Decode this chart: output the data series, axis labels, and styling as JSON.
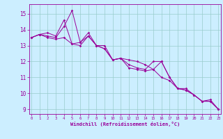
{
  "xlabel": "Windchill (Refroidissement éolien,°C)",
  "bg_color": "#cceeff",
  "line_color": "#990099",
  "grid_color": "#99cccc",
  "x_ticks": [
    0,
    1,
    2,
    3,
    4,
    5,
    6,
    7,
    8,
    9,
    10,
    11,
    12,
    13,
    14,
    15,
    16,
    17,
    18,
    19,
    20,
    21,
    22,
    23
  ],
  "y_ticks": [
    9,
    10,
    11,
    12,
    13,
    14,
    15
  ],
  "ylim": [
    8.7,
    15.6
  ],
  "xlim": [
    -0.3,
    23.3
  ],
  "line1_x": [
    0,
    1,
    2,
    3,
    4,
    5,
    6,
    7,
    8,
    9,
    10,
    11,
    12,
    13,
    14,
    15,
    16,
    17,
    18,
    19,
    20,
    21,
    22,
    23
  ],
  "line1_y": [
    13.5,
    13.7,
    13.6,
    13.5,
    14.2,
    15.2,
    13.2,
    13.8,
    13.0,
    12.8,
    12.1,
    12.2,
    11.8,
    11.6,
    11.5,
    12.0,
    12.0,
    11.0,
    10.3,
    10.3,
    9.9,
    9.5,
    9.5,
    9.0
  ],
  "line2_x": [
    0,
    1,
    2,
    3,
    4,
    5,
    6,
    7,
    8,
    9,
    10,
    11,
    12,
    13,
    14,
    15,
    16,
    17,
    18,
    19,
    20,
    21,
    22,
    23
  ],
  "line2_y": [
    13.5,
    13.7,
    13.8,
    13.6,
    14.6,
    13.1,
    13.2,
    13.6,
    13.0,
    13.0,
    12.1,
    12.2,
    12.1,
    12.0,
    11.8,
    11.5,
    12.0,
    11.0,
    10.3,
    10.2,
    9.9,
    9.5,
    9.6,
    9.0
  ],
  "line3_x": [
    0,
    1,
    2,
    3,
    4,
    5,
    6,
    7,
    8,
    9,
    10,
    11,
    12,
    13,
    14,
    15,
    16,
    17,
    18,
    19,
    20,
    21,
    22,
    23
  ],
  "line3_y": [
    13.5,
    13.7,
    13.5,
    13.4,
    13.5,
    13.1,
    13.0,
    13.6,
    13.0,
    12.8,
    12.1,
    12.2,
    11.6,
    11.5,
    11.4,
    11.5,
    11.0,
    10.8,
    10.3,
    10.2,
    9.9,
    9.5,
    9.5,
    9.0
  ]
}
